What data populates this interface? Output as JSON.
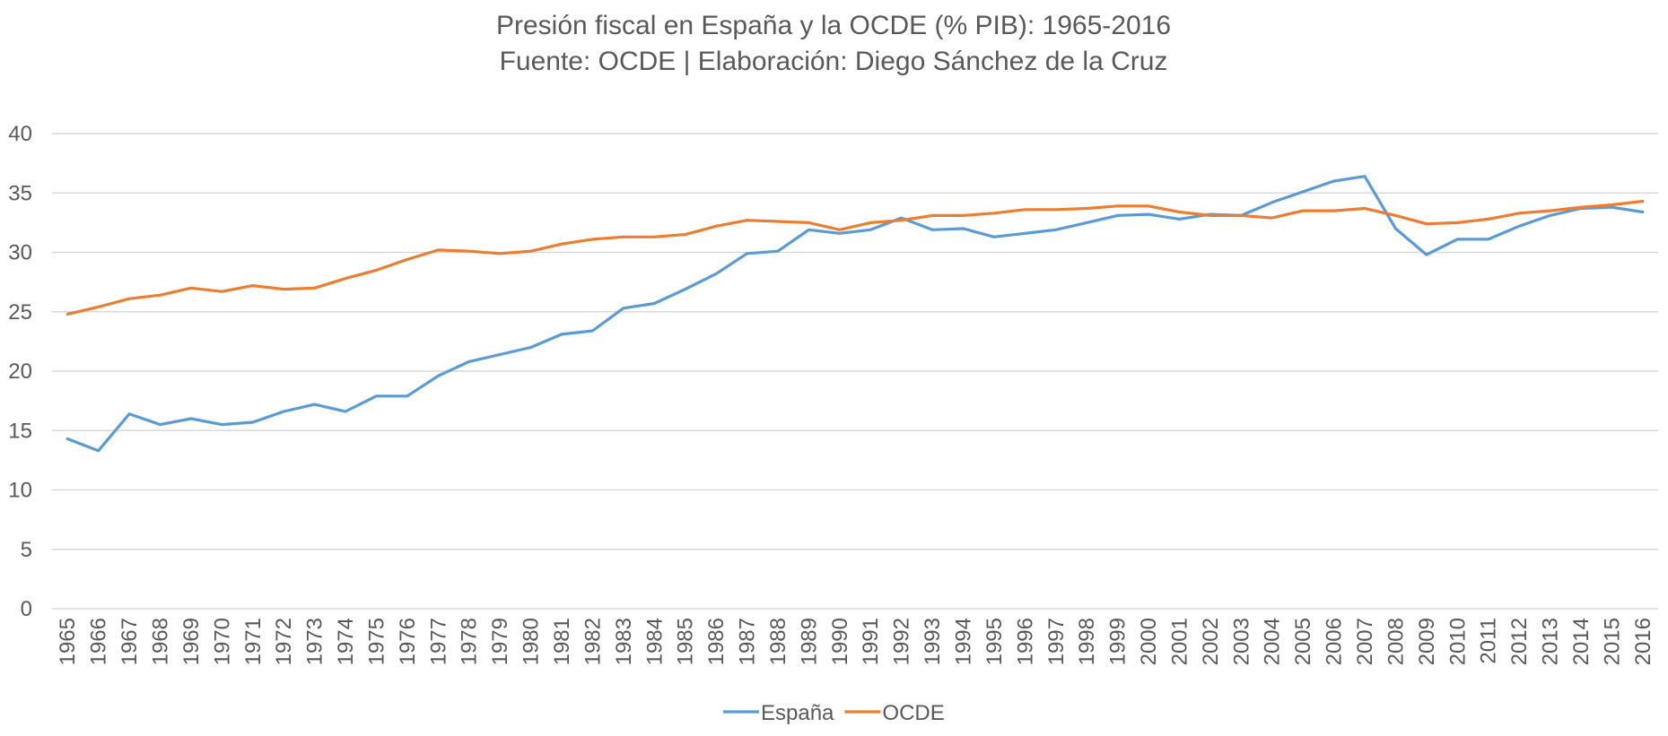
{
  "chart_data": {
    "type": "line",
    "title": "Presión fiscal en España y la OCDE (% PIB): 1965-2016",
    "subtitle": "Fuente: OCDE | Elaboración: Diego Sánchez de la Cruz",
    "xlabel": "",
    "ylabel": "",
    "ylim": [
      0,
      40
    ],
    "yticks": [
      "0",
      "5",
      "10",
      "15",
      "20",
      "25",
      "30",
      "35",
      "40"
    ],
    "grid": true,
    "legend_position": "bottom",
    "x": [
      "1965",
      "1966",
      "1967",
      "1968",
      "1969",
      "1970",
      "1971",
      "1972",
      "1973",
      "1974",
      "1975",
      "1976",
      "1977",
      "1978",
      "1979",
      "1980",
      "1981",
      "1982",
      "1983",
      "1984",
      "1985",
      "1986",
      "1987",
      "1988",
      "1989",
      "1990",
      "1991",
      "1992",
      "1993",
      "1994",
      "1995",
      "1996",
      "1997",
      "1998",
      "1999",
      "2000",
      "2001",
      "2002",
      "2003",
      "2004",
      "2005",
      "2006",
      "2007",
      "2008",
      "2009",
      "2010",
      "2011",
      "2012",
      "2013",
      "2014",
      "2015",
      "2016"
    ],
    "series": [
      {
        "name": "España",
        "color": "#5b9bd5",
        "values": [
          14.3,
          13.3,
          16.4,
          15.5,
          16.0,
          15.5,
          15.7,
          16.6,
          17.2,
          16.6,
          17.9,
          17.9,
          19.6,
          20.8,
          21.4,
          22.0,
          23.1,
          23.4,
          25.3,
          25.7,
          26.9,
          28.2,
          29.9,
          30.1,
          31.9,
          31.6,
          31.9,
          32.9,
          31.9,
          32.0,
          31.3,
          31.6,
          31.9,
          32.5,
          33.1,
          33.2,
          32.8,
          33.2,
          33.1,
          34.2,
          35.1,
          36.0,
          36.4,
          32.0,
          29.8,
          31.1,
          31.1,
          32.2,
          33.1,
          33.7,
          33.8,
          33.4
        ]
      },
      {
        "name": "OCDE",
        "color": "#ed7d31",
        "values": [
          24.8,
          25.4,
          26.1,
          26.4,
          27.0,
          26.7,
          27.2,
          26.9,
          27.0,
          27.8,
          28.5,
          29.4,
          30.2,
          30.1,
          29.9,
          30.1,
          30.7,
          31.1,
          31.3,
          31.3,
          31.5,
          32.2,
          32.7,
          32.6,
          32.5,
          31.9,
          32.5,
          32.7,
          33.1,
          33.1,
          33.3,
          33.6,
          33.6,
          33.7,
          33.9,
          33.9,
          33.4,
          33.1,
          33.1,
          32.9,
          33.5,
          33.5,
          33.7,
          33.1,
          32.4,
          32.5,
          32.8,
          33.3,
          33.5,
          33.8,
          34.0,
          34.3
        ]
      }
    ]
  }
}
